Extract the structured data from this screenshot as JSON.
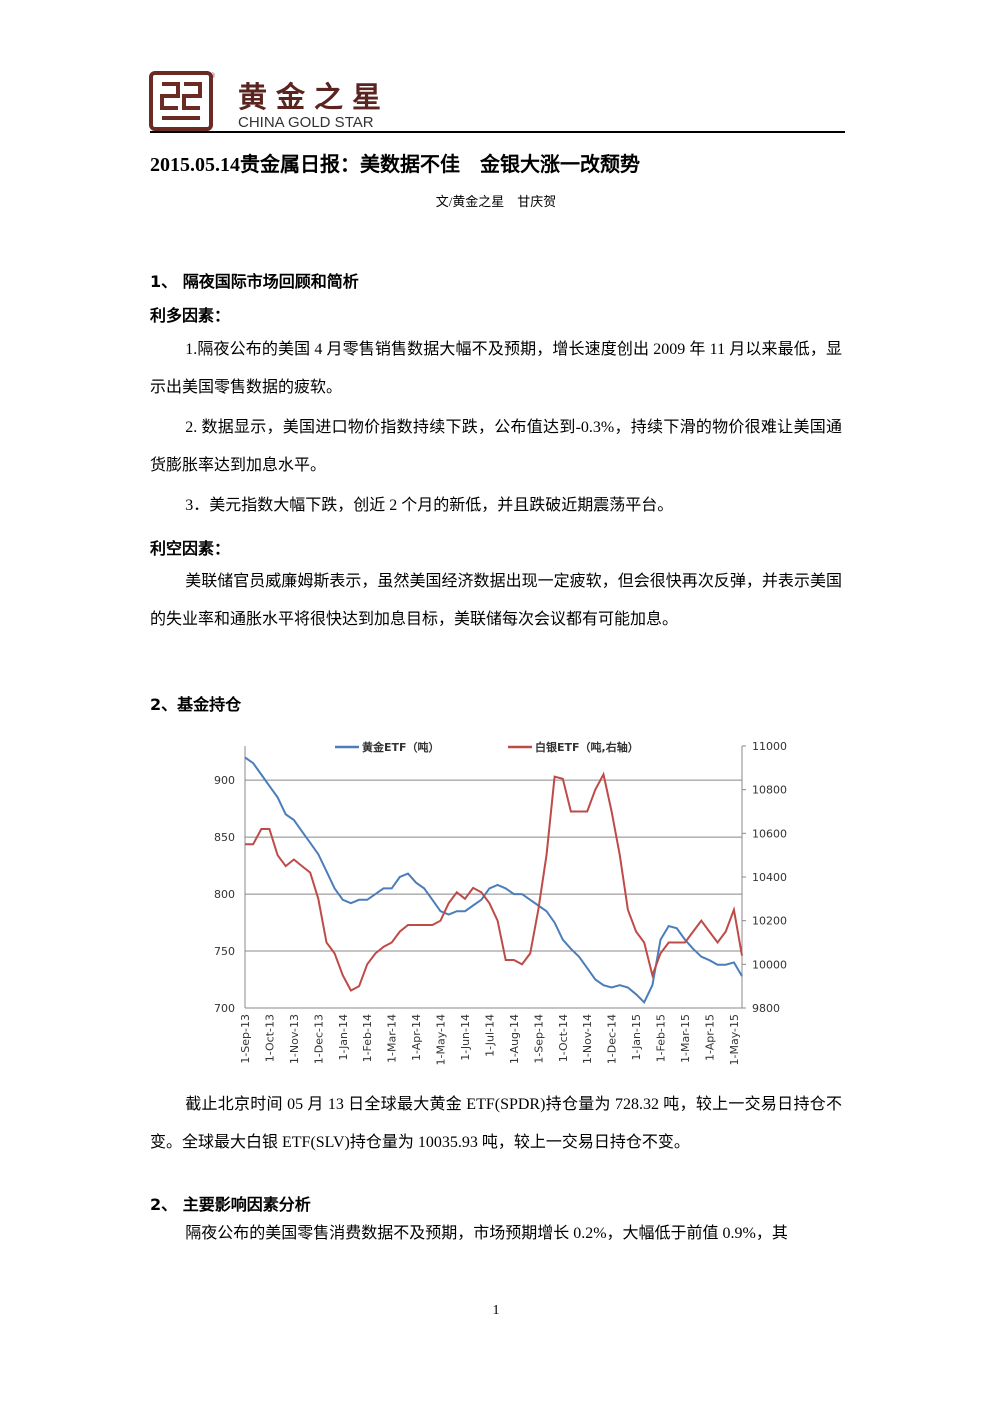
{
  "header": {
    "brand": "黄金之星",
    "brand_en": "CHINA GOLD STAR"
  },
  "title": "2015.05.14贵金属日报：美数据不佳　金银大涨一改颓势",
  "byline": "文/黄金之星　甘庆贺",
  "section1": {
    "heading": "1、 隔夜国际市场回顾和简析",
    "bullish_label": "利多因素：",
    "bullish": [
      "1.隔夜公布的美国 4 月零售销售数据大幅不及预期，增长速度创出 2009 年 11 月以来最低，显示出美国零售数据的疲软。",
      "2. 数据显示，美国进口物价指数持续下跌，公布值达到-0.3%，持续下滑的物价很难让美国通货膨胀率达到加息水平。",
      "3．美元指数大幅下跌，创近 2 个月的新低，并且跌破近期震荡平台。"
    ],
    "bearish_label": "利空因素：",
    "bearish": [
      "美联储官员威廉姆斯表示，虽然美国经济数据出现一定疲软，但会很快再次反弹，并表示美国的失业率和通胀水平将很快达到加息目标，美联储每次会议都有可能加息。"
    ]
  },
  "section2": {
    "heading": "2、基金持仓",
    "paragraph": "截止北京时间 05 月 13 日全球最大黄金 ETF(SPDR)持仓量为 728.32 吨，较上一交易日持仓不变。全球最大白银 ETF(SLV)持仓量为 10035.93 吨，较上一交易日持仓不变。"
  },
  "chart_data": {
    "type": "line",
    "categories": [
      "1-Sep-13",
      null,
      null,
      "1-Oct-13",
      null,
      null,
      "1-Nov-13",
      null,
      null,
      "1-Dec-13",
      null,
      null,
      "1-Jan-14",
      null,
      null,
      "1-Feb-14",
      null,
      null,
      "1-Mar-14",
      null,
      null,
      "1-Apr-14",
      null,
      null,
      "1-May-14",
      null,
      null,
      "1-Jun-14",
      null,
      null,
      "1-Jul-14",
      null,
      null,
      "1-Aug-14",
      null,
      null,
      "1-Sep-14",
      null,
      null,
      "1-Oct-14",
      null,
      null,
      "1-Nov-14",
      null,
      null,
      "1-Dec-14",
      null,
      null,
      "1-Jan-15",
      null,
      null,
      "1-Feb-15",
      null,
      null,
      "1-Mar-15",
      null,
      null,
      "1-Apr-15",
      null,
      null,
      "1-May-15",
      null
    ],
    "series": [
      {
        "name": "黄金ETF（吨）",
        "color": "#4a7ebb",
        "values": [
          920,
          915,
          905,
          895,
          885,
          870,
          865,
          855,
          845,
          835,
          820,
          805,
          795,
          792,
          795,
          795,
          800,
          805,
          805,
          815,
          818,
          810,
          805,
          795,
          785,
          782,
          785,
          785,
          790,
          795,
          805,
          808,
          805,
          800,
          800,
          795,
          790,
          785,
          775,
          760,
          752,
          745,
          735,
          725,
          720,
          718,
          720,
          718,
          712,
          705,
          720,
          760,
          772,
          770,
          760,
          752,
          745,
          742,
          738,
          738,
          740,
          728
        ]
      },
      {
        "name": "白银ETF（吨,右轴）",
        "color": "#be4b48",
        "axis": "y2",
        "values": [
          10550,
          10550,
          10620,
          10620,
          10500,
          10450,
          10480,
          10450,
          10420,
          10300,
          10100,
          10050,
          9950,
          9880,
          9900,
          10000,
          10050,
          10080,
          10100,
          10150,
          10180,
          10180,
          10180,
          10180,
          10200,
          10280,
          10330,
          10300,
          10350,
          10330,
          10280,
          10200,
          10020,
          10020,
          10000,
          10050,
          10250,
          10500,
          10860,
          10850,
          10700,
          10700,
          10700,
          10800,
          10870,
          10700,
          10500,
          10250,
          10150,
          10100,
          9950,
          10050,
          10100,
          10100,
          10100,
          10150,
          10200,
          10150,
          10100,
          10150,
          10250,
          10040
        ]
      }
    ],
    "ylim": [
      700,
      930
    ],
    "yticks": [
      700,
      750,
      800,
      850,
      900
    ],
    "y2lim": [
      9800,
      11000
    ],
    "y2ticks": [
      9800,
      10000,
      10200,
      10400,
      10600,
      10800,
      11000
    ],
    "grid": true,
    "legend": "top"
  },
  "section3": {
    "heading": "2、 主要影响因素分析",
    "paragraph": "隔夜公布的美国零售消费数据不及预期，市场预期增长 0.2%，大幅低于前值 0.9%，其"
  },
  "page_number": "1"
}
